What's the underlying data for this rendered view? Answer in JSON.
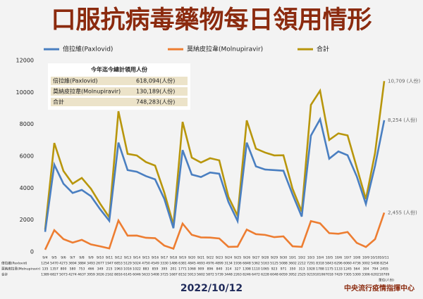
{
  "chart_data": {
    "type": "line",
    "title": "口服抗病毒藥物每日領用情形",
    "categories": [
      "9/4",
      "9/5",
      "9/6",
      "9/7",
      "9/8",
      "9/9",
      "9/10",
      "9/11",
      "9/12",
      "9/13",
      "9/14",
      "9/15",
      "9/16",
      "9/17",
      "9/18",
      "9/19",
      "9/20",
      "9/21",
      "9/22",
      "9/23",
      "9/24",
      "9/25",
      "9/26",
      "9/27",
      "9/28",
      "9/29",
      "9/30",
      "10/1",
      "10/2",
      "10/3",
      "10/4",
      "10/5",
      "10/6",
      "10/7",
      "10/8",
      "10/9",
      "10/10",
      "10/11"
    ],
    "series": [
      {
        "name": "倍拉維(Paxlovid)",
        "color": "#4a7fc1",
        "values": [
          1254,
          5470,
          4273,
          3694,
          3884,
          3493,
          2677,
          1947,
          6853,
          5129,
          5024,
          4750,
          4549,
          3330,
          1486,
          6381,
          4845,
          4693,
          4976,
          4899,
          3134,
          1936,
          6848,
          5362,
          5163,
          5125,
          5088,
          3602,
          2212,
          7291,
          8318,
          5843,
          6296,
          6060,
          4736,
          3002,
          5408,
          8254
        ],
        "value_labels": [
          null,
          null,
          null,
          null,
          null,
          null,
          null,
          null,
          null,
          null,
          null,
          null,
          null,
          null,
          null,
          null,
          null,
          null,
          null,
          null,
          null,
          null,
          null,
          null,
          null,
          null,
          null,
          null,
          null,
          null,
          null,
          null,
          null,
          null,
          null,
          null,
          null,
          "8,254 (人份)"
        ]
      },
      {
        "name": "莫納皮拉韋(Molnupiravir)",
        "color": "#ed7d31",
        "values": [
          135,
          1357,
          800,
          580,
          753,
          466,
          349,
          215,
          1963,
          1016,
          1022,
          883,
          859,
          395,
          201,
          1771,
          1068,
          909,
          896,
          840,
          314,
          327,
          1398,
          1110,
          1065,
          923,
          971,
          350,
          313,
          1928,
          1788,
          1175,
          1133,
          1245,
          564,
          304,
          794,
          2455
        ],
        "value_labels": [
          null,
          null,
          null,
          null,
          null,
          null,
          null,
          null,
          null,
          null,
          null,
          null,
          null,
          null,
          null,
          null,
          null,
          null,
          null,
          null,
          null,
          null,
          null,
          null,
          null,
          null,
          null,
          null,
          null,
          null,
          null,
          null,
          null,
          null,
          null,
          null,
          null,
          "2,455 (人份)"
        ]
      },
      {
        "name": "合計",
        "color": "#b8960c",
        "values": [
          1389,
          6827,
          5073,
          4274,
          4637,
          3959,
          3026,
          2162,
          8816,
          6145,
          6046,
          5633,
          5408,
          3725,
          1687,
          8152,
          5913,
          5602,
          5872,
          5739,
          3448,
          2263,
          8246,
          6472,
          6228,
          6048,
          6059,
          3952,
          2525,
          9219,
          10106,
          7018,
          7429,
          7305,
          5300,
          3306,
          6202,
          10709
        ],
        "value_labels": [
          null,
          null,
          null,
          null,
          null,
          null,
          null,
          null,
          null,
          null,
          null,
          null,
          null,
          null,
          null,
          null,
          null,
          null,
          null,
          null,
          null,
          null,
          null,
          null,
          null,
          null,
          null,
          null,
          null,
          null,
          null,
          null,
          null,
          null,
          null,
          null,
          null,
          "10,709 (人份)"
        ]
      }
    ],
    "ylim": [
      0,
      12000
    ],
    "yticks": [
      0,
      2000,
      4000,
      6000,
      8000,
      10000,
      12000
    ],
    "grid": false,
    "summary": {
      "title": "今年迄今總計領用人份",
      "rows": [
        [
          "倍拉維(Paxlovid)",
          "618,094(人份)"
        ],
        [
          "莫納皮拉韋(Molnupiravir)",
          "130,189(人份)"
        ],
        [
          "合計",
          "748,283(人份)"
        ]
      ]
    },
    "unit_note": "單位(人份)",
    "date": "2022/10/12",
    "source": "中央流行疫情指揮中心"
  }
}
